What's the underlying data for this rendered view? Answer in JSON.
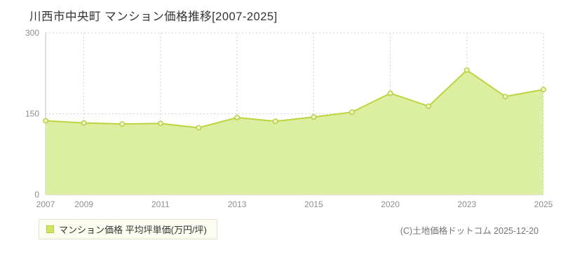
{
  "page": {
    "title": "川西市中央町 マンション価格推移[2007-2025]",
    "copyright": "(C)土地価格ドットコム 2025-12-20"
  },
  "legend": {
    "label": "マンション価格 平均坪単価(万円/坪)",
    "marker_color": "#cfe364"
  },
  "chart_data": {
    "type": "area",
    "title": "川西市中央町 マンション価格推移[2007-2025]",
    "series_name": "マンション価格 平均坪単価(万円/坪)",
    "x": [
      2007,
      2009,
      2010,
      2011,
      2012,
      2013,
      2014,
      2015,
      2017,
      2020,
      2022,
      2023,
      2024,
      2025
    ],
    "values": [
      137,
      133,
      131,
      132,
      124,
      143,
      136,
      144,
      153,
      188,
      164,
      231,
      182,
      195
    ],
    "ylim": [
      0,
      300
    ],
    "yticks": [
      0,
      150,
      300
    ],
    "xtick_labels": [
      "2007",
      "2009",
      "2011",
      "2013",
      "2015",
      "2020",
      "2023",
      "2025"
    ],
    "xlabel": "",
    "ylabel": "万円/坪",
    "grid": "dotted",
    "legend_position": "bottom-left",
    "colors": {
      "fill": "#dcee9f",
      "line": "#bcd43e",
      "marker_fill": "#eef6c8",
      "marker_stroke": "#b5cd3e",
      "axis": "#c3c3c3",
      "grid": "#cfcfcf",
      "tick_text": "#8e8e8e"
    }
  }
}
